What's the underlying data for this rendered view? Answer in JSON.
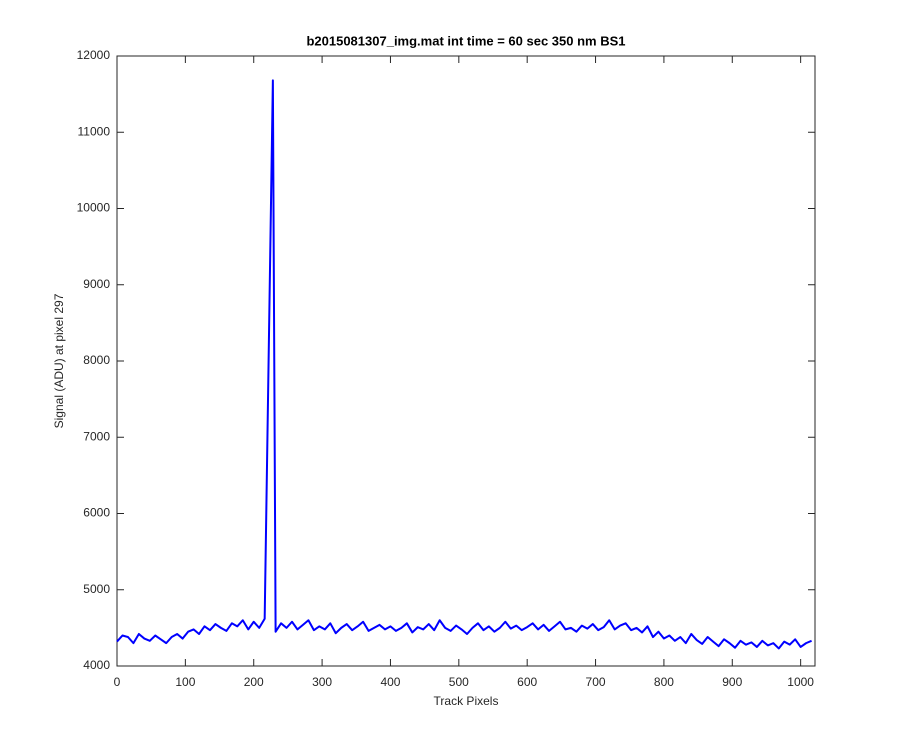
{
  "chart_data": {
    "type": "line",
    "title": "b2015081307_img.mat int time = 60 sec  350 nm BS1",
    "x_label": "Track Pixels",
    "y_label": "Signal (ADU) at pixel 297",
    "x": [
      0,
      8,
      16,
      24,
      32,
      40,
      48,
      56,
      64,
      72,
      80,
      88,
      96,
      104,
      112,
      120,
      128,
      136,
      144,
      152,
      160,
      168,
      176,
      184,
      192,
      200,
      208,
      216,
      228,
      232,
      240,
      248,
      256,
      264,
      272,
      280,
      288,
      296,
      304,
      312,
      320,
      328,
      336,
      344,
      352,
      360,
      368,
      376,
      384,
      392,
      400,
      408,
      416,
      424,
      432,
      440,
      448,
      456,
      464,
      472,
      480,
      488,
      496,
      504,
      512,
      520,
      528,
      536,
      544,
      552,
      560,
      568,
      576,
      584,
      592,
      600,
      608,
      616,
      624,
      632,
      640,
      648,
      656,
      664,
      672,
      680,
      688,
      696,
      704,
      712,
      720,
      728,
      736,
      744,
      752,
      760,
      768,
      776,
      784,
      792,
      800,
      808,
      816,
      824,
      832,
      840,
      848,
      856,
      864,
      872,
      880,
      888,
      896,
      904,
      912,
      920,
      928,
      936,
      944,
      952,
      960,
      968,
      976,
      984,
      992,
      1000,
      1008,
      1016
    ],
    "series": [
      {
        "color": "#0000ff",
        "values": [
          4320,
          4400,
          4380,
          4300,
          4420,
          4360,
          4330,
          4400,
          4350,
          4300,
          4380,
          4420,
          4360,
          4450,
          4480,
          4420,
          4520,
          4470,
          4550,
          4500,
          4460,
          4560,
          4520,
          4600,
          4480,
          4580,
          4500,
          4620,
          11680,
          4450,
          4560,
          4500,
          4580,
          4480,
          4540,
          4600,
          4470,
          4520,
          4480,
          4560,
          4430,
          4500,
          4550,
          4470,
          4520,
          4580,
          4460,
          4500,
          4540,
          4480,
          4520,
          4460,
          4500,
          4560,
          4440,
          4510,
          4480,
          4550,
          4470,
          4600,
          4500,
          4460,
          4530,
          4480,
          4420,
          4500,
          4560,
          4470,
          4520,
          4450,
          4500,
          4580,
          4490,
          4530,
          4470,
          4510,
          4560,
          4480,
          4540,
          4460,
          4520,
          4580,
          4480,
          4500,
          4450,
          4530,
          4490,
          4550,
          4470,
          4510,
          4600,
          4480,
          4530,
          4560,
          4470,
          4500,
          4440,
          4520,
          4380,
          4450,
          4360,
          4400,
          4330,
          4380,
          4300,
          4420,
          4340,
          4290,
          4380,
          4320,
          4260,
          4350,
          4300,
          4240,
          4330,
          4280,
          4310,
          4250,
          4330,
          4270,
          4300,
          4230,
          4320,
          4280,
          4350,
          4250,
          4300,
          4330
        ]
      }
    ],
    "xlim": [
      0,
      1021
    ],
    "ylim": [
      4000,
      12000
    ],
    "xticks": [
      0,
      100,
      200,
      300,
      400,
      500,
      600,
      700,
      800,
      900,
      1000
    ],
    "yticks": [
      4000,
      5000,
      6000,
      7000,
      8000,
      9000,
      10000,
      11000,
      12000
    ]
  }
}
